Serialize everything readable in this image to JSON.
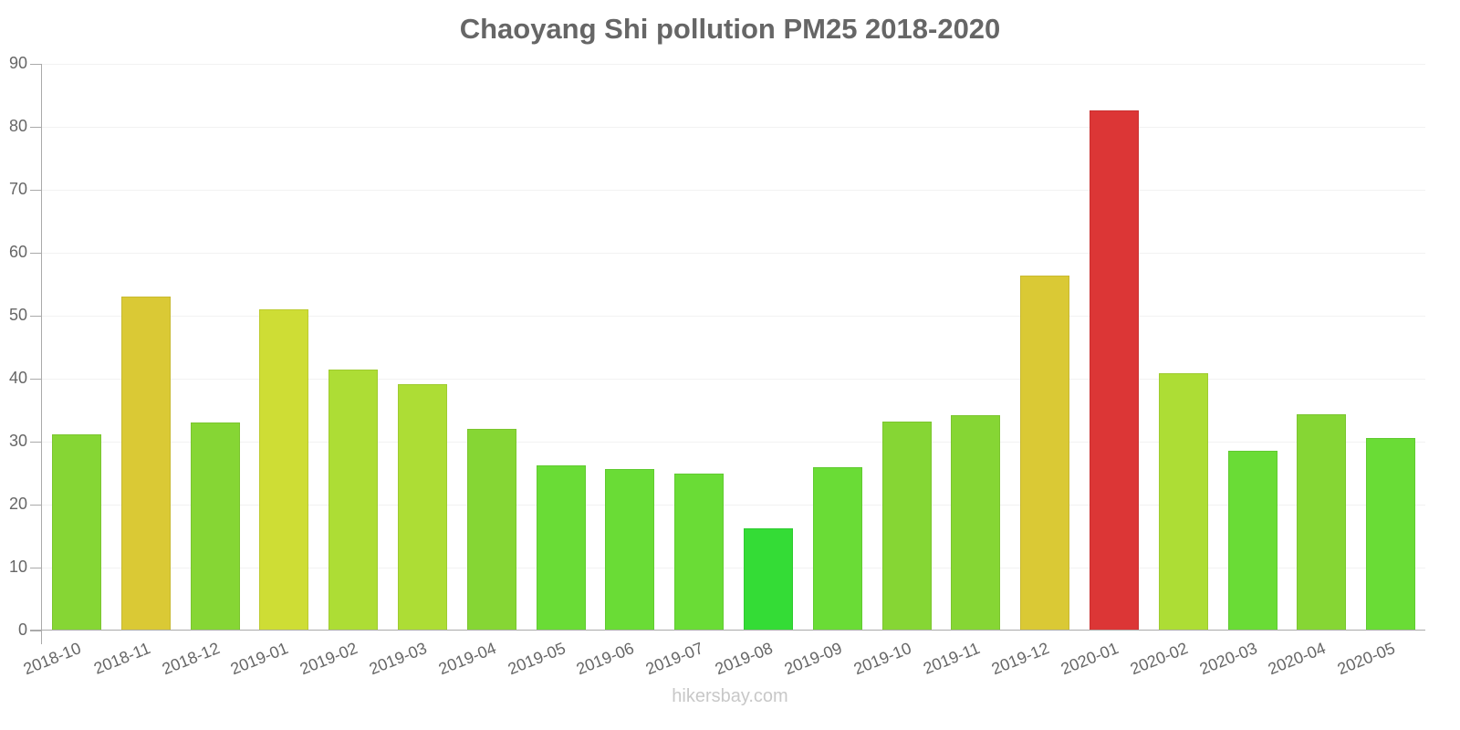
{
  "title": "Chaoyang Shi pollution PM25 2018-2020",
  "footer": "hikersbay.com",
  "y_ticks": [
    "0",
    "10",
    "20",
    "30",
    "40",
    "50",
    "60",
    "70",
    "80",
    "90"
  ],
  "chart_data": {
    "type": "bar",
    "title": "Chaoyang Shi pollution PM25 2018-2020",
    "xlabel": "",
    "ylabel": "",
    "ylim": [
      0,
      90
    ],
    "yticks": [
      0,
      10,
      20,
      30,
      40,
      50,
      60,
      70,
      80,
      90
    ],
    "grid": true,
    "legend": null,
    "categories": [
      "2018-10",
      "2018-11",
      "2018-12",
      "2019-01",
      "2019-02",
      "2019-03",
      "2019-04",
      "2019-05",
      "2019-06",
      "2019-07",
      "2019-08",
      "2019-09",
      "2019-10",
      "2019-11",
      "2019-12",
      "2020-01",
      "2020-02",
      "2020-03",
      "2020-04",
      "2020-05"
    ],
    "values": [
      31.1,
      53.1,
      33.0,
      51.0,
      41.4,
      39.1,
      32.1,
      26.2,
      25.7,
      25.0,
      16.2,
      25.9,
      33.2,
      34.2,
      56.4,
      82.6,
      40.8,
      28.5,
      34.3,
      30.6
    ],
    "colors": [
      "#86d634",
      "#dac935",
      "#86d634",
      "#cedd35",
      "#addd35",
      "#addd35",
      "#86d634",
      "#6adc36",
      "#6adc36",
      "#6adc36",
      "#34dc36",
      "#6adc36",
      "#86d634",
      "#86d634",
      "#dac935",
      "#dc3636",
      "#addd35",
      "#6adc36",
      "#86d634",
      "#6adc36"
    ]
  }
}
